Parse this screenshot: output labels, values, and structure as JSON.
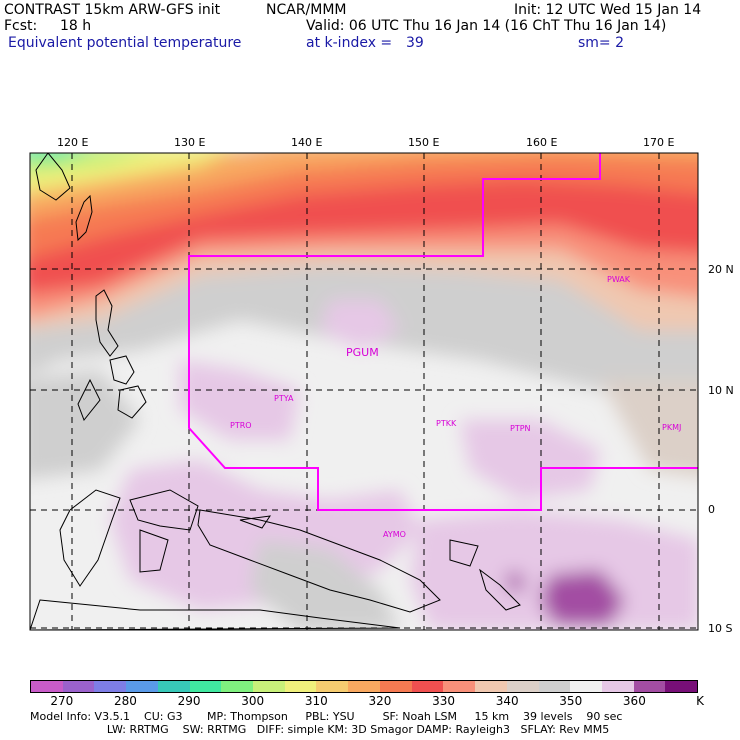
{
  "header": {
    "model": "CONTRAST 15km ARW-GFS init",
    "org": "NCAR/MMM",
    "fcst_label": "Fcst:",
    "fcst_value": "18 h",
    "field": "Equivalent potential temperature",
    "init": "Init: 12 UTC Wed 15 Jan 14",
    "valid": "Valid: 06 UTC Thu 16 Jan 14 (16 ChT Thu 16 Jan 14)",
    "level_label": "at k-index =",
    "level_value": "39",
    "smooth": "sm= 2"
  },
  "map": {
    "lon_labels": [
      "120 E",
      "130 E",
      "140 E",
      "150 E",
      "160 E",
      "170 E"
    ],
    "lat_labels": [
      "20 N",
      "10 N",
      "0",
      "10 S"
    ],
    "stations": [
      "PWAK",
      "PGUM",
      "PTYA",
      "PTRO",
      "PTKK",
      "PTPN",
      "PKMJ",
      "AYMO"
    ]
  },
  "colorbar": {
    "colors": [
      "#c95cc9",
      "#9b62cc",
      "#7e7ee6",
      "#5a9ae8",
      "#38c8b8",
      "#40e8a0",
      "#7ff07f",
      "#c8f07a",
      "#f0f07c",
      "#f6cc70",
      "#f8a860",
      "#f67a52",
      "#f05050",
      "#f8907a",
      "#f0c8b0",
      "#dcd0c8",
      "#cfcfcf",
      "#f0f0f0",
      "#e6c8e6",
      "#a34da3",
      "#780f78"
    ],
    "labels": [
      "270",
      "280",
      "290",
      "300",
      "310",
      "320",
      "330",
      "340",
      "350",
      "360"
    ],
    "unit": "K"
  },
  "footer": {
    "line1": "Model Info: V3.5.1    CU: G3       MP: Thompson     PBL: YSU        SF: Noah LSM     15 km    39 levels    90 sec",
    "line2": "                      LW: RRTMG    SW: RRTMG   DIFF: simple KM: 3D Smagor DAMP: Rayleigh3   SFLAY: Rev MM5"
  }
}
